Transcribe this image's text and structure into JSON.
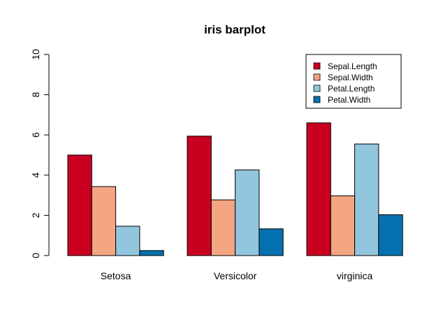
{
  "chart_data": {
    "type": "bar",
    "title": "iris barplot",
    "xlabel": "",
    "ylabel": "",
    "categories": [
      "Setosa",
      "Versicolor",
      "virginica"
    ],
    "series": [
      {
        "name": "Sepal.Length",
        "color": "#CA0020",
        "values": [
          5.0,
          5.94,
          6.6
        ]
      },
      {
        "name": "Sepal.Width",
        "color": "#F4A582",
        "values": [
          3.43,
          2.77,
          2.97
        ]
      },
      {
        "name": "Petal.Length",
        "color": "#92C5DE",
        "values": [
          1.46,
          4.26,
          5.55
        ]
      },
      {
        "name": "Petal.Width",
        "color": "#0571B0",
        "values": [
          0.25,
          1.33,
          2.03
        ]
      }
    ],
    "ylim": [
      0,
      10
    ],
    "yticks": [
      "0",
      "2",
      "4",
      "6",
      "8",
      "10"
    ],
    "grid": false,
    "legend_position": "top-right"
  }
}
